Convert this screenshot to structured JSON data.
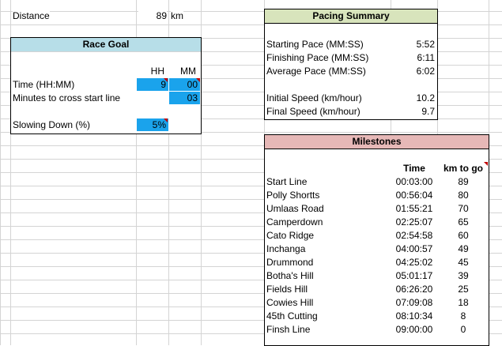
{
  "distance": {
    "label": "Distance",
    "value": "89",
    "unit": "km"
  },
  "race_goal": {
    "title": "Race Goal",
    "col_hh": "HH",
    "col_mm": "MM",
    "rows": [
      {
        "label": "Time (HH:MM)",
        "hh": "9",
        "mm": "00"
      },
      {
        "label": "Minutes to cross start line",
        "hh": "",
        "mm": "03"
      },
      {
        "label": "Slowing Down (%)",
        "hh": "5%",
        "mm": ""
      }
    ]
  },
  "pacing": {
    "title": "Pacing Summary",
    "rows": [
      {
        "label": "Starting Pace (MM:SS)",
        "value": "5:52"
      },
      {
        "label": "Finishing Pace (MM:SS)",
        "value": "6:11"
      },
      {
        "label": "Average Pace (MM:SS)",
        "value": "6:02"
      },
      {
        "label": "",
        "value": ""
      },
      {
        "label": "Initial Speed (km/hour)",
        "value": "10.2"
      },
      {
        "label": "Final Speed (km/hour)",
        "value": "9.7"
      }
    ]
  },
  "milestones": {
    "title": "Milestones",
    "col_time": "Time",
    "col_km": "km to go",
    "rows": [
      {
        "name": "Start Line",
        "time": "00:03:00",
        "km": "89"
      },
      {
        "name": "Polly Shortts",
        "time": "00:56:04",
        "km": "80"
      },
      {
        "name": "Umlaas Road",
        "time": "01:55:21",
        "km": "70"
      },
      {
        "name": "Camperdown",
        "time": "02:25:07",
        "km": "65"
      },
      {
        "name": "Cato Ridge",
        "time": "02:54:58",
        "km": "60"
      },
      {
        "name": "Inchanga",
        "time": "04:00:57",
        "km": "49"
      },
      {
        "name": "Drummond",
        "time": "04:25:02",
        "km": "45"
      },
      {
        "name": "Botha's Hill",
        "time": "05:01:17",
        "km": "39"
      },
      {
        "name": "Fields Hill",
        "time": "06:26:20",
        "km": "25"
      },
      {
        "name": "Cowies Hill",
        "time": "07:09:08",
        "km": "18"
      },
      {
        "name": "45th Cutting",
        "time": "08:10:34",
        "km": "8"
      },
      {
        "name": "Finsh Line",
        "time": "09:00:00",
        "km": "0"
      }
    ]
  },
  "colors": {
    "race_goal_header": "#b7dee8",
    "pacing_header": "#d8e4bc",
    "milestones_header": "#e6b8b7",
    "input_cell": "#1aa3ec",
    "comment_marker": "#c00000",
    "gridline": "#d4d4d4"
  }
}
